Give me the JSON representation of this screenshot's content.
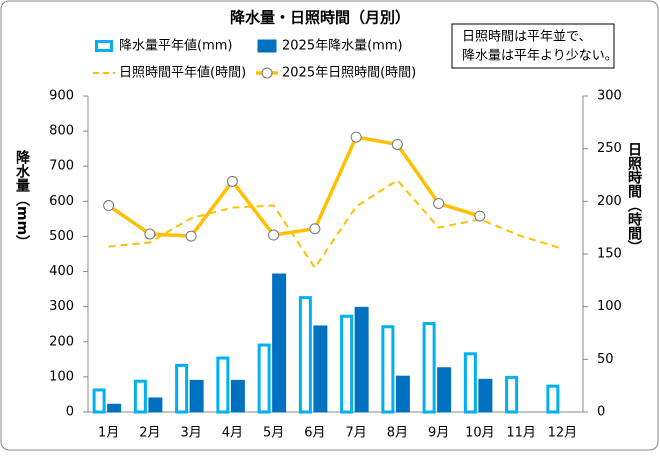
{
  "chart_data": {
    "type": "combo",
    "title": "降水量・日照時間（月別）",
    "annotation": [
      "日照時間は平年並で、",
      "降水量は平年より少ない。"
    ],
    "y_label": "降水量（mm）",
    "y2_label": "日照時間（時間）",
    "categories": [
      "1月",
      "2月",
      "3月",
      "4月",
      "5月",
      "6月",
      "7月",
      "8月",
      "9月",
      "10月",
      "11月",
      "12月"
    ],
    "ylim": [
      0,
      900
    ],
    "yticks": [
      0,
      100,
      200,
      300,
      400,
      500,
      600,
      700,
      800,
      900
    ],
    "y2lim": [
      0,
      300
    ],
    "y2ticks": [
      0,
      50,
      100,
      150,
      200,
      250,
      300
    ],
    "series": [
      {
        "name": "降水量平年値(mm)",
        "type": "bar",
        "style": "outline",
        "color": "#00b0f0",
        "values": [
          67,
          92,
          137,
          158,
          195,
          330,
          277,
          247,
          256,
          170,
          103,
          78
        ]
      },
      {
        "name": "2025年降水量(mm)",
        "type": "bar",
        "style": "filled",
        "color": "#0070c0",
        "values": [
          22,
          40,
          90,
          90,
          393,
          245,
          298,
          102,
          126,
          93,
          null,
          null
        ]
      },
      {
        "name": "日照時間平年値(時間)",
        "type": "line",
        "axis": "y2",
        "dashed": true,
        "marker": false,
        "color": "#ffc000",
        "values": [
          157,
          161,
          184,
          194,
          196,
          137,
          195,
          220,
          175,
          183,
          167,
          155
        ]
      },
      {
        "name": "2025年日照時間(時間)",
        "type": "line",
        "axis": "y2",
        "dashed": false,
        "marker": true,
        "color": "#ffc000",
        "values": [
          196,
          169,
          167,
          219,
          168,
          174,
          261,
          254,
          198,
          186,
          null,
          null
        ]
      }
    ]
  }
}
